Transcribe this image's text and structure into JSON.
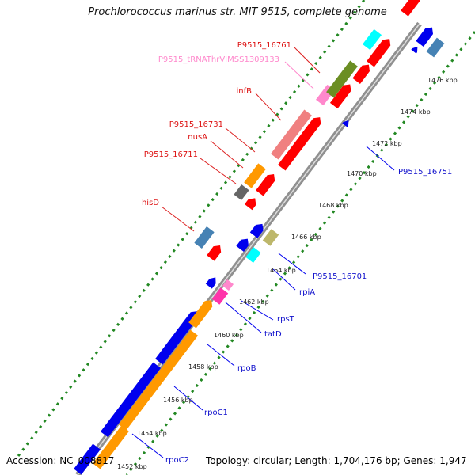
{
  "title": "Prochlorococcus marinus str. MIT 9515, complete genome",
  "footer": {
    "accession": "Accession: NC_008817",
    "summary": "Topology: circular; Length: 1,704,176 bp; Genes: 1,947"
  },
  "ticks": [
    "1476 kbp",
    "1474 kbp",
    "1472 kbp",
    "1470 kbp",
    "1468 kbp",
    "1466 kbp",
    "1464 kbp",
    "1462 kbp",
    "1460 kbp",
    "1458 kbp",
    "1456 kbp",
    "1454 kbp",
    "1452 kbp"
  ],
  "gene_labels_red": [
    "P9515_16761",
    "infB",
    "P9515_16731",
    "nusA",
    "P9515_16711",
    "hisD"
  ],
  "gene_label_trna": "P9515_tRNAThrVIMSS1309133",
  "gene_labels_blue": [
    "P9515_16751",
    "P9515_16701",
    "rpiA",
    "rpsT",
    "tatD",
    "rpoB",
    "rpoC1",
    "rpoC2"
  ],
  "colors": {
    "red": "#ff0000",
    "blue": "#0000ee",
    "pink": "#ff88cc",
    "green": "#228822",
    "orange": "#ff9900",
    "olive": "#6b8e23",
    "salmon": "#f08080",
    "cyan": "#00ffff",
    "steelblue": "#4682b4",
    "magenta": "#ff33aa",
    "grey": "#666666",
    "khaki": "#bdb76b"
  }
}
